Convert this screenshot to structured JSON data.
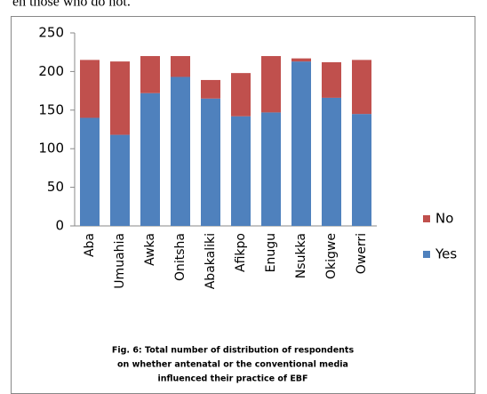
{
  "header": "en those who do not.",
  "chart_data": {
    "type": "stacked_bar",
    "caption": [
      "Fig. 6:  Total number of distribution of respondents",
      "on whether antenatal or the conventional media",
      "influenced their practice of EBF"
    ],
    "categories": [
      "Aba",
      "Umuahia",
      "Awka",
      "Onitsha",
      "Abakaliki",
      "Afikpo",
      "Enugu",
      "Nsukka",
      "Okigwe",
      "Owerri"
    ],
    "series": [
      {
        "name": "Yes",
        "color": "#4f81bd",
        "values": [
          140,
          118,
          172,
          193,
          165,
          142,
          147,
          213,
          166,
          145
        ]
      },
      {
        "name": "No",
        "color": "#c0504d",
        "values": [
          75,
          95,
          48,
          27,
          24,
          56,
          73,
          4,
          46,
          70
        ]
      }
    ],
    "ylim": [
      0,
      250
    ],
    "yticks": [
      0,
      50,
      100,
      150,
      200,
      250
    ],
    "legend": "right"
  }
}
